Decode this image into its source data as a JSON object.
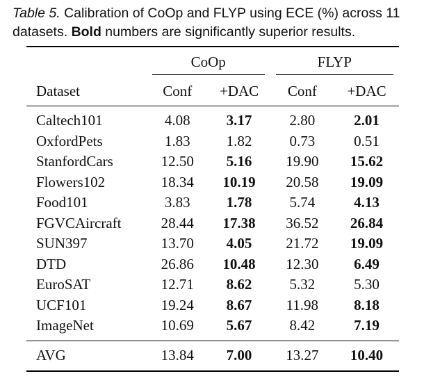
{
  "caption": {
    "label": "Table 5.",
    "text_1": " Calibration of CoOp and FLYP using ECE (%) across 11 datasets. ",
    "bold": "Bold",
    "text_2": " numbers are significantly superior results."
  },
  "table": {
    "group_headers": [
      "CoOp",
      "FLYP"
    ],
    "column_headers": [
      "Dataset",
      "Conf",
      "+DAC",
      "Conf",
      "+DAC"
    ],
    "rows": [
      {
        "dataset": "Caltech101",
        "coop_conf": "4.08",
        "coop_dac": "3.17",
        "flyp_conf": "2.80",
        "flyp_dac": "2.01",
        "bold": [
          false,
          true,
          false,
          true
        ]
      },
      {
        "dataset": "OxfordPets",
        "coop_conf": "1.83",
        "coop_dac": "1.82",
        "flyp_conf": "0.73",
        "flyp_dac": "0.51",
        "bold": [
          false,
          false,
          false,
          false
        ]
      },
      {
        "dataset": "StanfordCars",
        "coop_conf": "12.50",
        "coop_dac": "5.16",
        "flyp_conf": "19.90",
        "flyp_dac": "15.62",
        "bold": [
          false,
          true,
          false,
          true
        ]
      },
      {
        "dataset": "Flowers102",
        "coop_conf": "18.34",
        "coop_dac": "10.19",
        "flyp_conf": "20.58",
        "flyp_dac": "19.09",
        "bold": [
          false,
          true,
          false,
          true
        ]
      },
      {
        "dataset": "Food101",
        "coop_conf": "3.83",
        "coop_dac": "1.78",
        "flyp_conf": "5.74",
        "flyp_dac": "4.13",
        "bold": [
          false,
          true,
          false,
          true
        ]
      },
      {
        "dataset": "FGVCAircraft",
        "coop_conf": "28.44",
        "coop_dac": "17.38",
        "flyp_conf": "36.52",
        "flyp_dac": "26.84",
        "bold": [
          false,
          true,
          false,
          true
        ]
      },
      {
        "dataset": "SUN397",
        "coop_conf": "13.70",
        "coop_dac": "4.05",
        "flyp_conf": "21.72",
        "flyp_dac": "19.09",
        "bold": [
          false,
          true,
          false,
          true
        ]
      },
      {
        "dataset": "DTD",
        "coop_conf": "26.86",
        "coop_dac": "10.48",
        "flyp_conf": "12.30",
        "flyp_dac": "6.49",
        "bold": [
          false,
          true,
          false,
          true
        ]
      },
      {
        "dataset": "EuroSAT",
        "coop_conf": "12.71",
        "coop_dac": "8.62",
        "flyp_conf": "5.32",
        "flyp_dac": "5.30",
        "bold": [
          false,
          true,
          false,
          false
        ]
      },
      {
        "dataset": "UCF101",
        "coop_conf": "19.24",
        "coop_dac": "8.67",
        "flyp_conf": "11.98",
        "flyp_dac": "8.18",
        "bold": [
          false,
          true,
          false,
          true
        ]
      },
      {
        "dataset": "ImageNet",
        "coop_conf": "10.69",
        "coop_dac": "5.67",
        "flyp_conf": "8.42",
        "flyp_dac": "7.19",
        "bold": [
          false,
          true,
          false,
          true
        ]
      }
    ],
    "avg": {
      "dataset": "AVG",
      "coop_conf": "13.84",
      "coop_dac": "7.00",
      "flyp_conf": "13.27",
      "flyp_dac": "10.40",
      "bold": [
        false,
        true,
        false,
        true
      ]
    }
  }
}
